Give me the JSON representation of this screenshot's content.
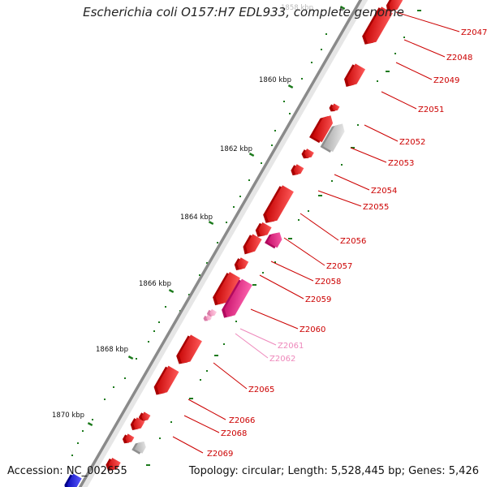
{
  "title": "Escherichia coli O157:H7 EDL933, complete genome",
  "footer": {
    "accession": "Accession: NC_002655",
    "summary": "Topology: circular; Length: 5,528,445 bp; Genes: 5,426"
  },
  "colors": {
    "backbone": "#8a8a8a",
    "gene_red": "#ee1111",
    "gene_magenta": "#ee2288",
    "gene_pink": "#f4a6c6",
    "gene_gray": "#c4c4c4",
    "gene_blue": "#1a1aee",
    "gc_green": "#1c7a1c",
    "label_red": "#cc0000",
    "label_pink": "#ee88bb",
    "tick_text": "#111111"
  },
  "ticks": [
    {
      "label": "1858 kbp"
    },
    {
      "label": "1860 kbp"
    },
    {
      "label": "1862 kbp"
    },
    {
      "label": "1864 kbp"
    },
    {
      "label": "1866 kbp"
    },
    {
      "label": "1868 kbp"
    },
    {
      "label": "1870 kbp"
    }
  ],
  "genes": [
    {
      "name": "Z2047",
      "color": "red"
    },
    {
      "name": "Z2048",
      "color": "red"
    },
    {
      "name": "Z2049",
      "color": "red"
    },
    {
      "name": "Z2051",
      "color": "red"
    },
    {
      "name": "Z2052",
      "color": "red"
    },
    {
      "name": "Z2053",
      "color": "red"
    },
    {
      "name": "Z2054",
      "color": "red"
    },
    {
      "name": "Z2055",
      "color": "red"
    },
    {
      "name": "Z2056",
      "color": "magenta"
    },
    {
      "name": "Z2057",
      "color": "red"
    },
    {
      "name": "Z2058",
      "color": "red"
    },
    {
      "name": "Z2059",
      "color": "magenta"
    },
    {
      "name": "Z2060",
      "color": "red"
    },
    {
      "name": "Z2061",
      "color": "pink"
    },
    {
      "name": "Z2062",
      "color": "pink"
    },
    {
      "name": "Z2065",
      "color": "red"
    },
    {
      "name": "Z2066",
      "color": "red"
    },
    {
      "name": "Z2068",
      "color": "red"
    },
    {
      "name": "Z2069",
      "color": "red"
    }
  ]
}
